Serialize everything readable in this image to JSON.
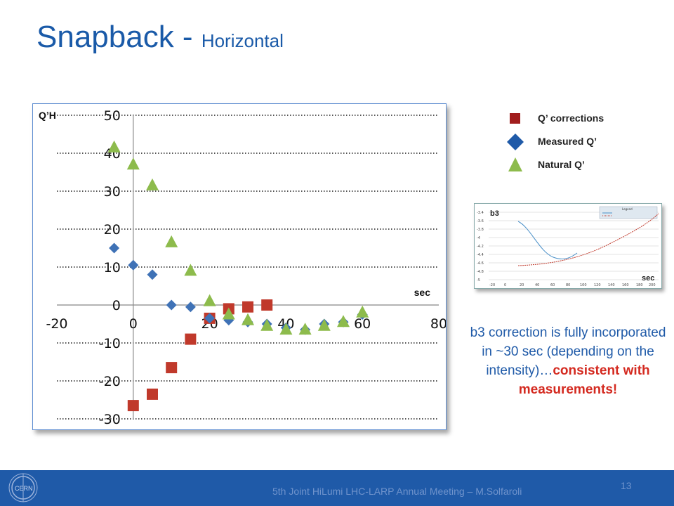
{
  "slide": {
    "title": "Snapback",
    "title_sep": " - ",
    "subtitle": "Horizontal"
  },
  "chart_data": {
    "type": "scatter",
    "ylabel": "Q’H",
    "xlabel": "sec",
    "xlim": [
      -20,
      80
    ],
    "ylim": [
      -30,
      50
    ],
    "x_ticks": [
      "-20",
      "0",
      "20",
      "40",
      "60",
      "80"
    ],
    "y_ticks": [
      "50",
      "40",
      "30",
      "20",
      "10",
      "0",
      "-10",
      "-20",
      "-30"
    ],
    "grid": "horizontal dotted",
    "series": [
      {
        "name": "Q’ corrections",
        "marker": "square",
        "color": "#c0392b",
        "x": [
          0,
          5,
          10,
          15,
          20,
          25,
          30,
          35
        ],
        "y": [
          -26.5,
          -23.5,
          -16.5,
          -9,
          -3.5,
          -1,
          -0.5,
          0
        ]
      },
      {
        "name": "Measured Q’",
        "marker": "diamond",
        "color": "#3f72b6",
        "x": [
          -5,
          0,
          5,
          10,
          15,
          20,
          25,
          30,
          35,
          40,
          45,
          50,
          55,
          60
        ],
        "y": [
          15,
          10.5,
          8,
          0,
          -0.5,
          -3.5,
          -4,
          -4.5,
          -5,
          -6,
          -6.5,
          -5,
          -4.5,
          -2.5
        ]
      },
      {
        "name": "Natural Q’",
        "marker": "triangle",
        "color": "#8dbb4c",
        "x": [
          -5,
          0,
          5,
          10,
          15,
          20,
          25,
          30,
          35,
          40,
          45,
          50,
          55,
          60
        ],
        "y": [
          41.5,
          37,
          31.5,
          16.5,
          9,
          1,
          -2.5,
          -4,
          -5.5,
          -6.5,
          -6.5,
          -5.5,
          -4.5,
          -2
        ]
      }
    ]
  },
  "legend": {
    "items": [
      {
        "label": "Q’ corrections",
        "marker": "square",
        "color": "#c0392b"
      },
      {
        "label": "Measured Q’",
        "marker": "diamond",
        "color": "#1f5aa8"
      },
      {
        "label": "Natural Q’",
        "marker": "triangle",
        "color": "#8dbb4c"
      }
    ]
  },
  "inset": {
    "ylabel": "b3",
    "xlabel": "sec",
    "y_ticks": [
      "-3.4",
      "-3.6",
      "-3.8",
      "-4",
      "-4.2",
      "-4.4",
      "-4.6",
      "-4.8",
      "-5"
    ],
    "x_ticks": [
      "-20",
      "0",
      "20",
      "40",
      "60",
      "80",
      "100",
      "120",
      "140",
      "160",
      "180",
      "200"
    ],
    "legend_title": "Legend"
  },
  "note": {
    "text": "b3 correction is fully incorporated in ~30 sec (depending on the intensity)…",
    "emphasis": "consistent with measurements!"
  },
  "footer": {
    "text": "5th Joint HiLumi LHC-LARP Annual Meeting – M.Solfaroli",
    "page": "13",
    "logo_text": "CERN"
  }
}
